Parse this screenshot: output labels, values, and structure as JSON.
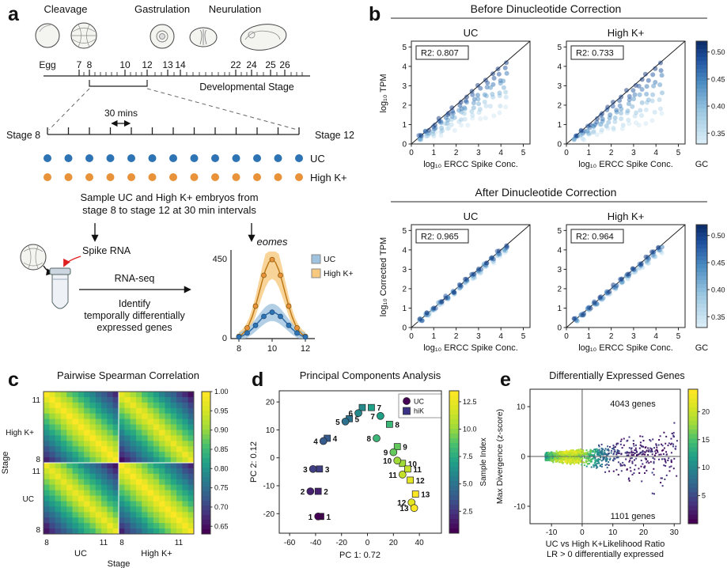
{
  "panel_a": {
    "label": "a",
    "phase_labels": [
      "Cleavage",
      "Gastrulation",
      "Neurulation"
    ],
    "egg_label": "Egg",
    "stage_numbers": [
      "7",
      "8",
      "10",
      "12",
      "13",
      "14",
      "22",
      "24",
      "25",
      "26"
    ],
    "dev_axis_label": "Developmental Stage",
    "interval_label": "30 mins",
    "stage_start": "Stage 8",
    "stage_end": "Stage 12",
    "n_samples": 13,
    "uc_label": "UC",
    "hik_label": "High K+",
    "uc_color": "#2e74b5",
    "hik_color": "#e8933a",
    "spike_color": "#e02020",
    "sample_line1": "Sample UC  and High K+ embryos from",
    "sample_line2": "stage 8 to stage 12 at 30 min intervals",
    "spike_label": "Spike RNA",
    "rnaseq_label": "RNA-seq",
    "identify_line1": "Identify",
    "identify_line2": "temporally differentially",
    "identify_line3": "expressed genes",
    "eomes": {
      "title": "eomes",
      "ymax": "450",
      "yzero": "0",
      "x_ticks": [
        "8",
        "10",
        "12"
      ],
      "legend_uc": "UC",
      "legend_hik": "High K+",
      "uc_fill": "#9fc3de",
      "hik_fill": "#f6c97e",
      "uc_peak": 150,
      "hik_peak": 450
    }
  },
  "panel_b": {
    "label": "b",
    "xlabel": "log₁₀ ERCC Spike Conc.",
    "colorbar_label": "GC",
    "gc_ticks": [
      "0.50",
      "0.45",
      "0.40",
      "0.35"
    ],
    "x_ticks": [
      0,
      1,
      2,
      3,
      4,
      5
    ],
    "y_ticks": [
      0,
      1,
      2,
      3,
      4,
      5
    ],
    "sections": [
      {
        "title": "Before Dinucleotide Correction",
        "ylabel": "log₁₀ TPM",
        "plots": [
          {
            "title": "UC",
            "r2": "R2: 0.807",
            "base": 0.45
          },
          {
            "title": "High K+",
            "r2": "R2: 0.733",
            "base": 0.34
          }
        ]
      },
      {
        "title": "After Dinucleotide Correction",
        "ylabel": "log₁₀ Corrected TPM",
        "plots": [
          {
            "title": "UC",
            "r2": "R2: 0.965",
            "base": 0.93
          },
          {
            "title": "High K+",
            "r2": "R2: 0.964",
            "base": 0.92
          }
        ]
      }
    ]
  },
  "panel_c": {
    "label": "c",
    "title": "Pairwise Spearman Correlation",
    "n_samples_per_condition": 13,
    "y_groups": [
      "High K+",
      "UC"
    ],
    "x_groups": [
      "UC",
      "High K+"
    ],
    "x_axis_label": "Stage",
    "y_axis_label": "Stage",
    "tick_hi": "11",
    "tick_lo": "8",
    "cbar_ticks": [
      "1.00",
      "0.95",
      "0.90",
      "0.85",
      "0.80",
      "0.75",
      "0.70",
      "0.65"
    ],
    "vmin": 0.63,
    "vmax": 1.0
  },
  "panel_d": {
    "label": "d",
    "title": "Principal Components Analysis",
    "xlabel": "PC 1: 0.72",
    "ylabel": "PC 2: 0.12",
    "x_ticks": [
      -60,
      -40,
      -20,
      0,
      20,
      40
    ],
    "y_ticks": [
      -20,
      -10,
      0,
      10,
      20
    ],
    "legend": [
      {
        "label": "UC",
        "marker": "circle"
      },
      {
        "label": "hiK",
        "marker": "square"
      }
    ],
    "cbar_label": "Sample Index",
    "cbar_ticks": [
      "12.5",
      "10.0",
      "7.5",
      "5.0",
      "2.5"
    ],
    "uc_label_color": "#cc2020",
    "hik_label_color": "#111111",
    "uc_points": [
      [
        -38,
        -21
      ],
      [
        -44,
        -12
      ],
      [
        -42,
        -4
      ],
      [
        -34,
        6
      ],
      [
        -17,
        13
      ],
      [
        -7,
        16
      ],
      [
        10,
        15
      ],
      [
        7,
        7
      ],
      [
        20,
        2
      ],
      [
        23,
        -1
      ],
      [
        27,
        -6
      ],
      [
        34,
        -16
      ],
      [
        36,
        -18
      ]
    ],
    "hik_points": [
      [
        -36,
        -21
      ],
      [
        -38,
        -12
      ],
      [
        -37,
        -4
      ],
      [
        -31,
        7
      ],
      [
        -14,
        14
      ],
      [
        -4,
        18
      ],
      [
        3,
        18
      ],
      [
        17,
        12
      ],
      [
        23,
        4
      ],
      [
        27,
        -2
      ],
      [
        31,
        -4
      ],
      [
        33,
        -8
      ],
      [
        37,
        -13
      ]
    ]
  },
  "panel_e": {
    "label": "e",
    "title": "Differentially Expressed Genes",
    "upper_text": "4043 genes",
    "lower_text": "1101 genes",
    "ylabel": "Max Divergence (z-score)",
    "xlabel_line1": "UC  vs High K+Likelihood Ratio",
    "xlabel_line2": "LR > 0 differentially expressed",
    "x_ticks": [
      -10,
      0,
      10,
      20,
      30
    ],
    "y_ticks": [
      -10,
      0,
      10
    ],
    "cbar_ticks": [
      "20",
      "15",
      "10",
      "5"
    ],
    "n_points": 1600
  }
}
